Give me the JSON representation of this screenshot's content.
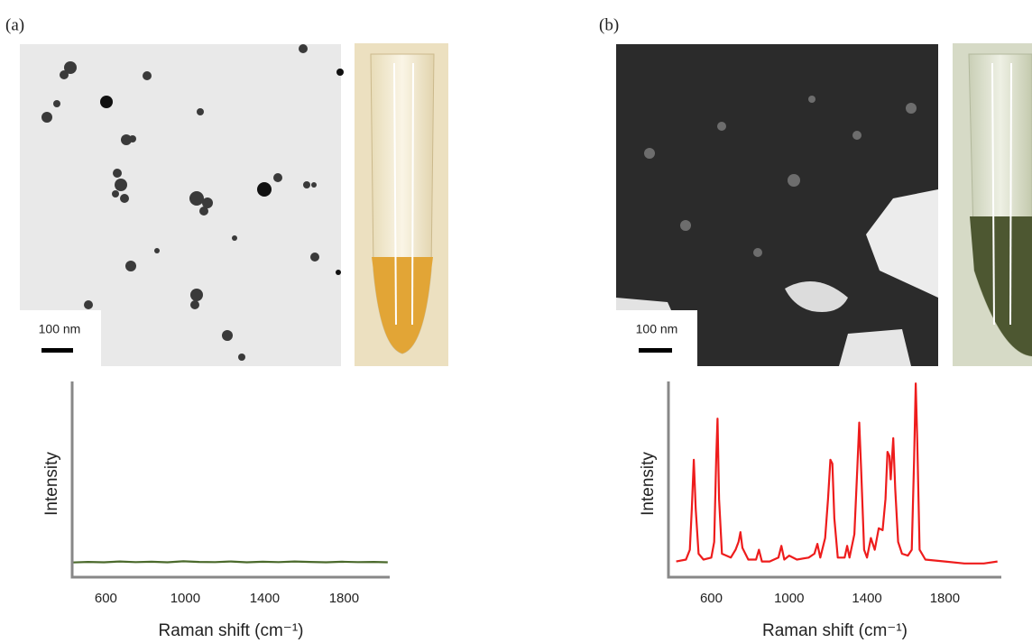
{
  "panels": [
    {
      "label": "(a)",
      "scale_bar": "100 nm"
    },
    {
      "label": "(b)",
      "scale_bar": "100 nm"
    }
  ],
  "chart_data": [
    {
      "type": "line",
      "x_label": "Raman shift (cm⁻¹)",
      "y_label": "Intensity",
      "color": "#4b6a2c",
      "xlim": [
        430,
        2030
      ],
      "ylim": [
        0,
        100
      ],
      "xticks": [
        600,
        1000,
        1400,
        1800
      ],
      "x": [
        430,
        510,
        590,
        670,
        750,
        830,
        910,
        990,
        1070,
        1150,
        1230,
        1310,
        1390,
        1470,
        1550,
        1630,
        1710,
        1790,
        1870,
        1950,
        2020
      ],
      "values": [
        7.5,
        7.8,
        7.6,
        8,
        7.7,
        7.9,
        7.6,
        8.1,
        7.8,
        7.7,
        8,
        7.6,
        7.9,
        7.7,
        8,
        7.8,
        7.6,
        7.9,
        7.7,
        7.8,
        7.6
      ]
    },
    {
      "type": "line",
      "x_label": "Raman shift (cm⁻¹)",
      "y_label": "Intensity",
      "color": "#ee1c1c",
      "xlim": [
        380,
        2090
      ],
      "ylim": [
        0,
        100
      ],
      "xticks": [
        600,
        1000,
        1400,
        1800
      ],
      "x": [
        420,
        470,
        490,
        500,
        510,
        520,
        535,
        560,
        600,
        615,
        625,
        632,
        640,
        655,
        700,
        725,
        740,
        750,
        760,
        790,
        830,
        845,
        860,
        900,
        945,
        960,
        975,
        1000,
        1040,
        1100,
        1130,
        1145,
        1160,
        1185,
        1200,
        1212,
        1222,
        1232,
        1250,
        1285,
        1298,
        1310,
        1335,
        1350,
        1360,
        1370,
        1385,
        1400,
        1420,
        1440,
        1460,
        1480,
        1495,
        1505,
        1515,
        1522,
        1535,
        1545,
        1560,
        1580,
        1610,
        1630,
        1642,
        1650,
        1658,
        1670,
        1700,
        1800,
        1900,
        2000,
        2070
      ],
      "values": [
        8,
        9,
        14,
        35,
        60,
        35,
        12,
        9,
        10,
        18,
        60,
        81,
        40,
        12,
        10,
        14,
        18,
        23,
        15,
        9,
        9,
        14,
        8,
        8,
        10,
        16,
        9,
        11,
        9,
        10,
        12,
        17,
        10,
        20,
        40,
        60,
        58,
        30,
        10,
        10,
        16,
        10,
        22,
        55,
        79,
        55,
        14,
        10,
        20,
        14,
        25,
        24,
        40,
        64,
        62,
        50,
        71,
        45,
        18,
        12,
        11,
        14,
        60,
        99,
        70,
        14,
        9,
        8,
        7,
        7,
        8
      ]
    }
  ]
}
